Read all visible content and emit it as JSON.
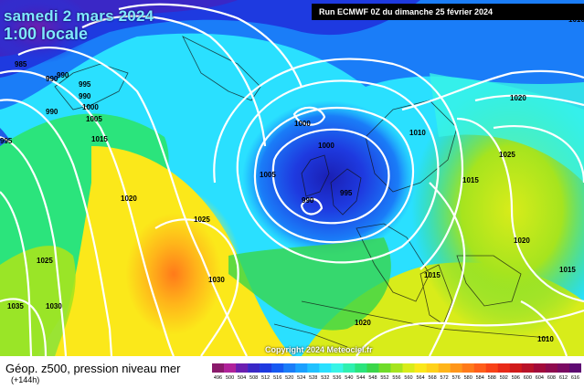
{
  "map": {
    "date": "samedi 2 mars 2024",
    "time": "1:00 locale",
    "run_info": "Run ECMWF 0Z du dimanche 25 février 2024",
    "copyright": "Copyright 2024 Meteociel.fr",
    "isobar_labels": [
      "985",
      "990",
      "995",
      "1000",
      "1005",
      "1010",
      "1015",
      "1020",
      "1025",
      "1030",
      "1035"
    ]
  },
  "legend": {
    "title": "Géop. z500, pression niveau mer",
    "lead": "(+144h)",
    "values": [
      "496",
      "500",
      "504",
      "508",
      "512",
      "516",
      "520",
      "524",
      "528",
      "532",
      "536",
      "540",
      "544",
      "548",
      "552",
      "556",
      "560",
      "564",
      "568",
      "572",
      "576",
      "580",
      "584",
      "588",
      "592",
      "596",
      "600",
      "604",
      "608",
      "612",
      "616"
    ],
    "colors": [
      "#8a1a6b",
      "#b0229a",
      "#6b1fb0",
      "#3a27c6",
      "#1e3ae0",
      "#1659f2",
      "#1a7df8",
      "#1aa0ff",
      "#20c1ff",
      "#2ae0ff",
      "#38f4e6",
      "#2ff0b0",
      "#2be47c",
      "#3ad64a",
      "#6fdc2a",
      "#a6e41e",
      "#d8ec1a",
      "#fbe81a",
      "#ffd21a",
      "#ffb51a",
      "#ff961a",
      "#ff7a1a",
      "#ff5e1a",
      "#f84218",
      "#e82a18",
      "#d01a1a",
      "#b81228",
      "#a20a3a",
      "#8e0a4e",
      "#7a0a62",
      "#5e0a72"
    ]
  }
}
